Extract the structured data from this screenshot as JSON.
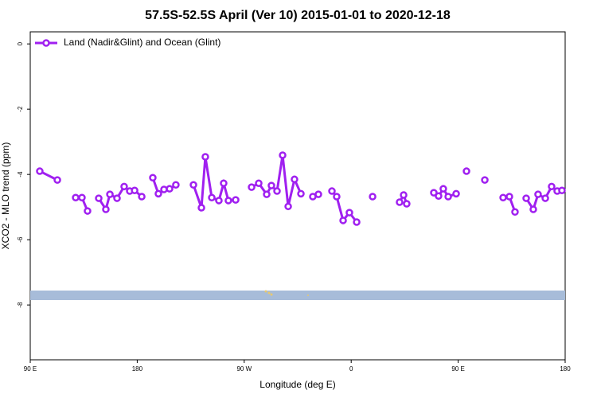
{
  "chart_data": {
    "type": "line",
    "title": "57.5S-52.5S April (Ver 10)   2015-01-01 to 2020-12-18",
    "x_label": "Longitude (deg E)",
    "y_label": "XCO2 - MLO trend (ppm)",
    "xlim": [
      90,
      540
    ],
    "xticks": [
      {
        "value": 90,
        "label": "90 E"
      },
      {
        "value": 180,
        "label": "180"
      },
      {
        "value": 270,
        "label": "90 W"
      },
      {
        "value": 360,
        "label": "0"
      },
      {
        "value": 450,
        "label": "90 E"
      },
      {
        "value": 540,
        "label": "180"
      }
    ],
    "ylim": [
      -9.68,
      0.37
    ],
    "yticks": [
      0,
      -2,
      -4,
      -6,
      -8
    ],
    "legend_position": "upper-left",
    "series": [
      {
        "name": "Land (Nadir&Glint) and Ocean (Glint)",
        "color": "#a020f0",
        "x": [
          98.0,
          112.8,
          null,
          128.2,
          133.5,
          138.2,
          null,
          147.6,
          153.6,
          157.0,
          163.0,
          169.0,
          173.7,
          177.8,
          183.8,
          null,
          193.1,
          197.8,
          202.5,
          207.2,
          212.5,
          null,
          227.3,
          234.0,
          237.3,
          242.7,
          248.7,
          252.7,
          256.7,
          262.8,
          null,
          276.2,
          282.2,
          288.9,
          292.9,
          297.6,
          302.3,
          307.0,
          312.3,
          317.7,
          null,
          327.7,
          332.4,
          null,
          343.8,
          347.8,
          353.2,
          358.5,
          364.6,
          null,
          378.0,
          null,
          400.7,
          404.1,
          406.7,
          null,
          429.5,
          433.5,
          437.5,
          441.6,
          448.3,
          null,
          457.0,
          null,
          472.4,
          null,
          487.8,
          493.1,
          497.8,
          null,
          507.2,
          513.2,
          517.2,
          523.3,
          528.6,
          533.3,
          537.3
        ],
        "values": [
          -3.9,
          -4.17,
          null,
          -4.71,
          -4.71,
          -5.12,
          null,
          -4.73,
          -5.07,
          -4.61,
          -4.73,
          -4.37,
          -4.51,
          -4.49,
          -4.68,
          null,
          -4.1,
          -4.59,
          -4.46,
          -4.44,
          -4.32,
          null,
          -4.32,
          -5.02,
          -3.46,
          -4.71,
          -4.8,
          -4.27,
          -4.8,
          -4.78,
          null,
          -4.39,
          -4.27,
          -4.61,
          -4.34,
          -4.51,
          -3.41,
          -4.98,
          -4.15,
          -4.59,
          null,
          -4.68,
          -4.61,
          null,
          -4.51,
          -4.68,
          -5.41,
          -5.17,
          -5.46,
          null,
          -4.68,
          null,
          -4.85,
          -4.63,
          -4.9,
          null,
          -4.56,
          -4.66,
          -4.44,
          -4.68,
          -4.59,
          null,
          -3.9,
          null,
          -4.17,
          null,
          -4.71,
          -4.68,
          -5.15,
          null,
          -4.73,
          -5.07,
          -4.61,
          -4.73,
          -4.37,
          -4.51,
          -4.49
        ]
      }
    ]
  }
}
